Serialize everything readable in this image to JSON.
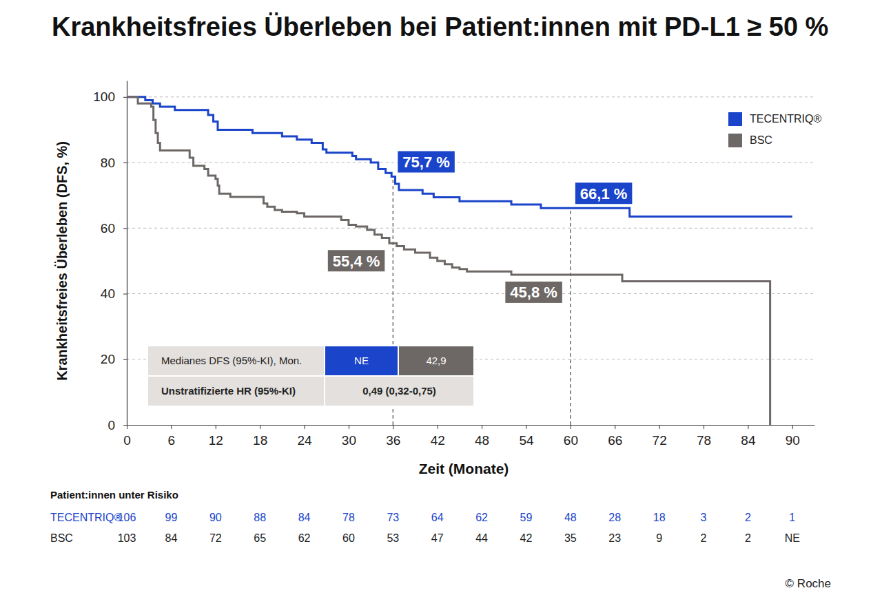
{
  "chart_data": {
    "type": "line",
    "line_style": "step",
    "title": "Krankheitsfreies Überleben bei Patient:innen mit PD-L1 ≥ 50 %",
    "x_label": "Zeit (Monate)",
    "y_label": "Krankheitsfreies Überleben (DFS, %)",
    "xlim": [
      0,
      93
    ],
    "xticks": [
      0,
      6,
      12,
      18,
      24,
      30,
      36,
      42,
      48,
      54,
      60,
      66,
      72,
      78,
      84,
      90
    ],
    "ylim": [
      0,
      105
    ],
    "yticks": [
      0,
      20,
      40,
      60,
      80,
      100
    ],
    "grid": true,
    "legend": "top-right",
    "series": [
      {
        "name": "TECENTRIQ®",
        "color": "#1a44c9",
        "x": [
          0,
          2.5,
          3.5,
          4.5,
          6.5,
          11,
          11.7,
          12.3,
          17,
          21,
          23,
          25,
          26.5,
          27,
          30.5,
          31,
          33,
          34,
          35,
          35.8,
          36.3,
          36.8,
          40,
          41.5,
          45,
          52,
          56,
          68,
          90
        ],
        "values": [
          100,
          99,
          98,
          97,
          96,
          94.5,
          92.5,
          90,
          89,
          88,
          87,
          86,
          84,
          83,
          82,
          81,
          80,
          78,
          76.8,
          75.7,
          73.5,
          71.6,
          70.5,
          69.4,
          68.2,
          67.2,
          66.1,
          63.5,
          63.5
        ],
        "annotations": [
          {
            "x": 36,
            "y": 75.7,
            "text": "75,7 %"
          },
          {
            "x": 60,
            "y": 66.1,
            "text": "66,1 %"
          }
        ],
        "at_risk": [
          106,
          99,
          90,
          88,
          84,
          78,
          73,
          64,
          62,
          59,
          48,
          28,
          18,
          3,
          2,
          1
        ]
      },
      {
        "name": "BSC",
        "color": "#6d6866",
        "x": [
          0,
          1.5,
          3.3,
          3.6,
          3.9,
          4.2,
          4.5,
          8.5,
          9,
          10.5,
          11,
          12,
          12.3,
          12.5,
          14,
          18.5,
          19,
          20,
          21,
          23,
          24,
          29,
          30,
          31,
          32.5,
          33.5,
          34.5,
          35.5,
          36.5,
          37.5,
          39,
          41,
          42,
          43,
          44,
          45,
          46,
          52,
          67,
          87
        ],
        "values": [
          100,
          98,
          97,
          93,
          89,
          86,
          83.7,
          81.5,
          79,
          78,
          76,
          75,
          73,
          70.5,
          69.5,
          67.5,
          66.5,
          65.5,
          65,
          64.5,
          63.5,
          62.5,
          61,
          60.5,
          59.5,
          58,
          57,
          55.4,
          54.5,
          53.5,
          52.5,
          51,
          50,
          49,
          48,
          47.5,
          46.8,
          45.8,
          43.8,
          0
        ],
        "annotations": [
          {
            "x": 36,
            "y": 55.4,
            "text": "55,4 %"
          },
          {
            "x": 60,
            "y": 45.8,
            "text": "45,8 %"
          }
        ],
        "at_risk": [
          103,
          84,
          72,
          65,
          62,
          60,
          53,
          47,
          44,
          42,
          35,
          23,
          9,
          2,
          2,
          "NE"
        ]
      }
    ],
    "table": {
      "rows": [
        [
          "Medianes DFS (95%-KI), Mon.",
          "NE",
          "42,9"
        ],
        [
          "Unstratifizierte HR (95%-KI)",
          "0,49 (0,32-0,75)"
        ]
      ]
    },
    "at_risk_title": "Patient:innen unter Risiko",
    "source": "© Roche"
  }
}
